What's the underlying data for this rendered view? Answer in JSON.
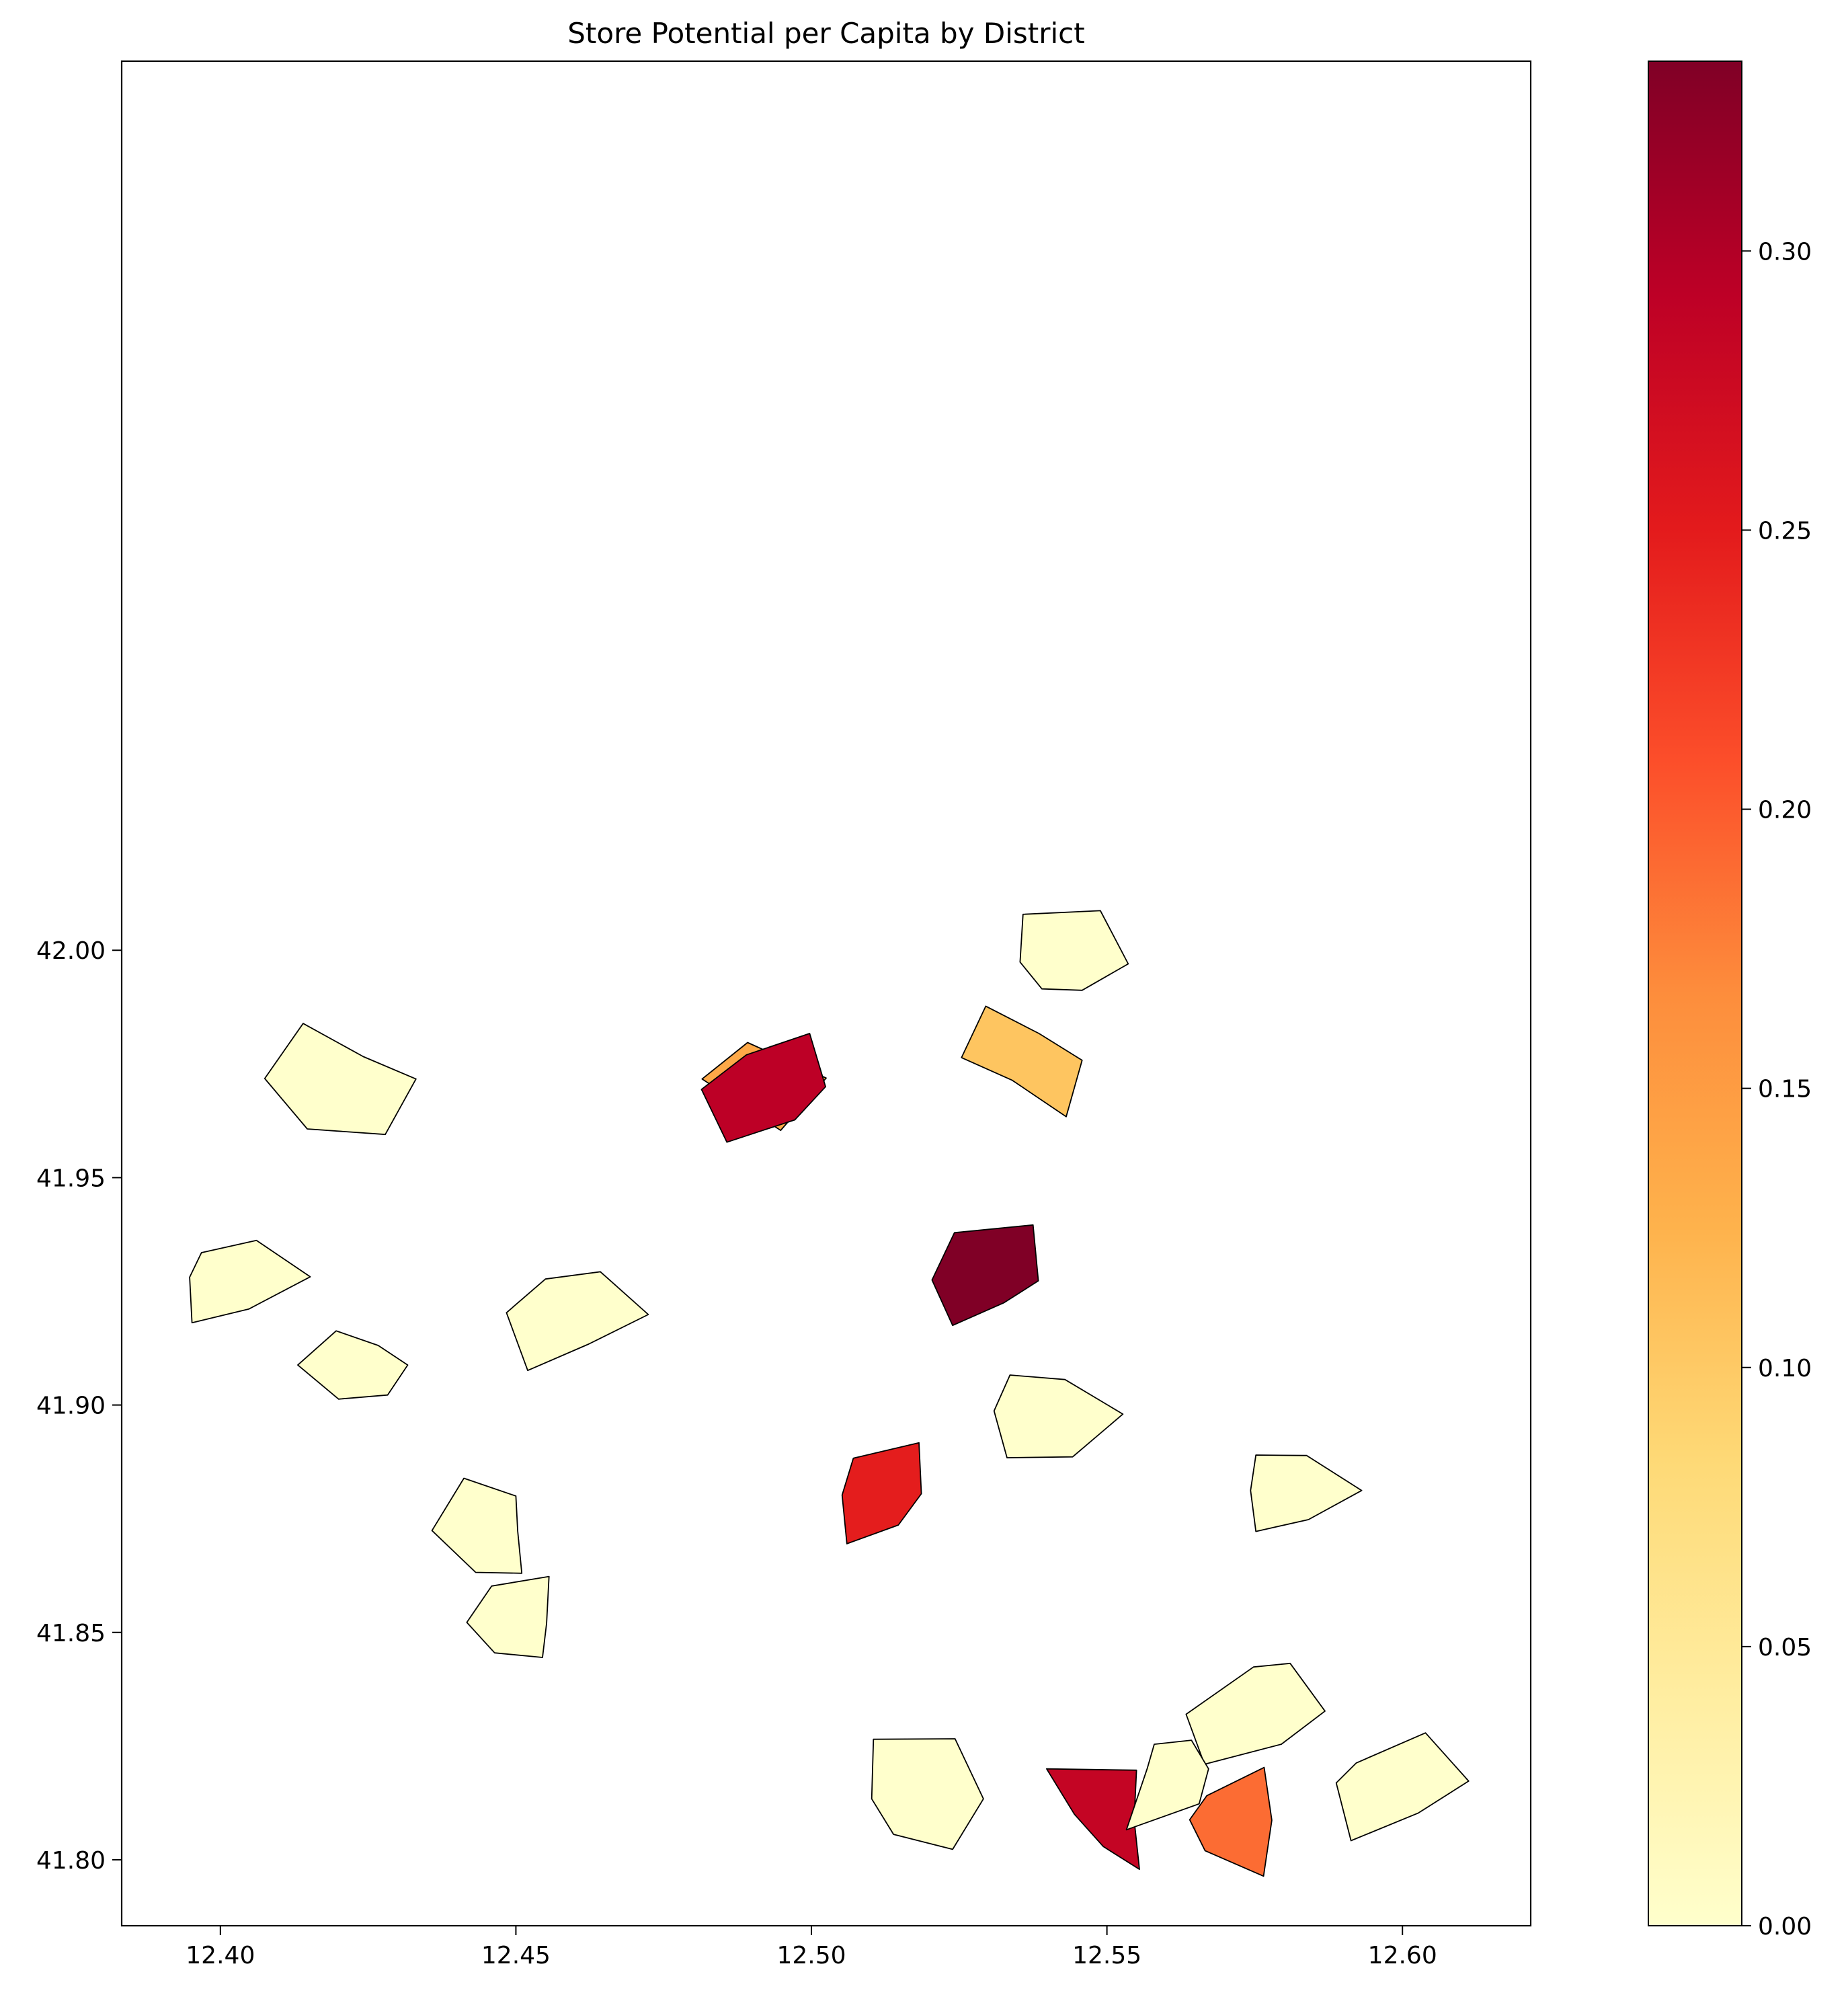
{
  "chart_data": {
    "type": "choropleth",
    "title": "Store Potential per Capita by District",
    "xlabel": "",
    "ylabel": "",
    "xlim": [
      12.3833,
      12.6217
    ],
    "ylim": [
      41.7855,
      42.1955
    ],
    "x_ticks": [
      12.4,
      12.45,
      12.5,
      12.55,
      12.6
    ],
    "x_tick_labels": [
      "12.40",
      "12.45",
      "12.50",
      "12.55",
      "12.60"
    ],
    "y_ticks": [
      41.8,
      41.85,
      41.9,
      41.95,
      42.0
    ],
    "y_tick_labels": [
      "41.80",
      "41.85",
      "41.90",
      "41.95",
      "42.00"
    ],
    "colorbar": {
      "colormap": "YlOrRd",
      "range": [
        0,
        0.334
      ],
      "ticks": [
        0.0,
        0.05,
        0.1,
        0.15,
        0.2,
        0.25,
        0.3
      ],
      "tick_labels": [
        "0.00",
        "0.05",
        "0.10",
        "0.15",
        "0.20",
        "0.25",
        "0.30"
      ],
      "placement": "right"
    },
    "grid": false,
    "districts": [
      {
        "value": 0.0,
        "polygon": [
          [
            12.5358,
            42.0079
          ],
          [
            12.5489,
            42.0087
          ],
          [
            12.5536,
            41.997
          ],
          [
            12.5458,
            41.9912
          ],
          [
            12.539,
            41.9915
          ],
          [
            12.5353,
            41.9974
          ]
        ]
      },
      {
        "value": 0.0,
        "polygon": [
          [
            12.414,
            41.9839
          ],
          [
            12.4242,
            41.9766
          ],
          [
            12.4331,
            41.9717
          ],
          [
            12.4279,
            41.9595
          ],
          [
            12.4147,
            41.9607
          ],
          [
            12.4075,
            41.9718
          ]
        ]
      },
      {
        "value": 0.135,
        "polygon": [
          [
            12.4892,
            41.9797
          ],
          [
            12.5025,
            41.9719
          ],
          [
            12.4948,
            41.9604
          ],
          [
            12.4815,
            41.9717
          ]
        ]
      },
      {
        "value": 0.292,
        "polygon": [
          [
            12.489,
            41.977
          ],
          [
            12.4997,
            41.9817
          ],
          [
            12.5024,
            41.97
          ],
          [
            12.4972,
            41.9627
          ],
          [
            12.4857,
            41.9578
          ],
          [
            12.4814,
            41.9694
          ]
        ]
      },
      {
        "value": 0.105,
        "polygon": [
          [
            12.5295,
            41.9877
          ],
          [
            12.5385,
            41.9817
          ],
          [
            12.5458,
            41.9758
          ],
          [
            12.5431,
            41.9634
          ],
          [
            12.534,
            41.9714
          ],
          [
            12.5254,
            41.9764
          ]
        ]
      },
      {
        "value": 0.334,
        "polygon": [
          [
            12.5242,
            41.9379
          ],
          [
            12.5375,
            41.9396
          ],
          [
            12.5384,
            41.9273
          ],
          [
            12.5326,
            41.9225
          ],
          [
            12.5239,
            41.9175
          ],
          [
            12.5204,
            41.9275
          ]
        ]
      },
      {
        "value": 0.0,
        "polygon": [
          [
            12.3968,
            41.9335
          ],
          [
            12.4061,
            41.9362
          ],
          [
            12.4152,
            41.9282
          ],
          [
            12.4048,
            41.9211
          ],
          [
            12.3952,
            41.9181
          ],
          [
            12.3948,
            41.9281
          ]
        ]
      },
      {
        "value": 0.0,
        "polygon": [
          [
            12.4196,
            41.9163
          ],
          [
            12.4267,
            41.9131
          ],
          [
            12.4317,
            41.9088
          ],
          [
            12.4283,
            41.9022
          ],
          [
            12.42,
            41.9013
          ],
          [
            12.4131,
            41.9088
          ]
        ]
      },
      {
        "value": 0.0,
        "polygon": [
          [
            12.455,
            41.9277
          ],
          [
            12.4643,
            41.9293
          ],
          [
            12.4724,
            41.9199
          ],
          [
            12.4623,
            41.9134
          ],
          [
            12.452,
            41.9076
          ],
          [
            12.4484,
            41.9203
          ]
        ]
      },
      {
        "value": 0.0,
        "polygon": [
          [
            12.5336,
            41.9066
          ],
          [
            12.5429,
            41.9056
          ],
          [
            12.5527,
            41.898
          ],
          [
            12.5442,
            41.8886
          ],
          [
            12.5331,
            41.8884
          ],
          [
            12.5309,
            41.8987
          ]
        ]
      },
      {
        "value": 0.0,
        "polygon": [
          [
            12.5752,
            41.889
          ],
          [
            12.5838,
            41.8889
          ],
          [
            12.5931,
            41.8812
          ],
          [
            12.5841,
            41.8748
          ],
          [
            12.5752,
            41.8722
          ],
          [
            12.5743,
            41.8812
          ]
        ]
      },
      {
        "value": 0.248,
        "polygon": [
          [
            12.5071,
            41.8883
          ],
          [
            12.5182,
            41.8917
          ],
          [
            12.5186,
            41.8805
          ],
          [
            12.5147,
            41.8736
          ],
          [
            12.506,
            41.8695
          ],
          [
            12.5052,
            41.8802
          ]
        ]
      },
      {
        "value": 0.0,
        "polygon": [
          [
            12.4412,
            41.8839
          ],
          [
            12.45,
            41.88
          ],
          [
            12.4503,
            41.8723
          ],
          [
            12.451,
            41.863
          ],
          [
            12.4432,
            41.8632
          ],
          [
            12.4358,
            41.8724
          ]
        ]
      },
      {
        "value": 0.0,
        "polygon": [
          [
            12.4459,
            41.8602
          ],
          [
            12.4556,
            41.8623
          ],
          [
            12.4552,
            41.852
          ],
          [
            12.4545,
            41.8445
          ],
          [
            12.4464,
            41.8455
          ],
          [
            12.4417,
            41.8522
          ]
        ]
      },
      {
        "value": 0.0,
        "polygon": [
          [
            12.5748,
            41.8424
          ],
          [
            12.581,
            41.8432
          ],
          [
            12.5869,
            41.8327
          ],
          [
            12.5795,
            41.8254
          ],
          [
            12.5665,
            41.821
          ],
          [
            12.5634,
            41.832
          ]
        ]
      },
      {
        "value": 0.0,
        "polygon": [
          [
            12.5105,
            41.8265
          ],
          [
            12.5243,
            41.8266
          ],
          [
            12.5291,
            41.8134
          ],
          [
            12.5239,
            41.8023
          ],
          [
            12.5139,
            41.8056
          ],
          [
            12.5102,
            41.8134
          ]
        ]
      },
      {
        "value": 0.285,
        "polygon": [
          [
            12.5398,
            41.82
          ],
          [
            12.555,
            41.8197
          ],
          [
            12.5546,
            41.8088
          ],
          [
            12.5555,
            41.7979
          ],
          [
            12.5494,
            41.8029
          ],
          [
            12.5445,
            41.81
          ]
        ]
      },
      {
        "value": 0.0,
        "polygon": [
          [
            12.558,
            41.8254
          ],
          [
            12.5643,
            41.8263
          ],
          [
            12.5672,
            41.82
          ],
          [
            12.5656,
            41.8123
          ],
          [
            12.5533,
            41.8066
          ],
          [
            12.5568,
            41.82
          ]
        ]
      },
      {
        "value": 0.189,
        "polygon": [
          [
            12.5669,
            41.8141
          ],
          [
            12.5766,
            41.8203
          ],
          [
            12.5779,
            41.8087
          ],
          [
            12.5765,
            41.7964
          ],
          [
            12.5666,
            41.802
          ],
          [
            12.564,
            41.8088
          ]
        ]
      },
      {
        "value": 0.0,
        "polygon": [
          [
            12.5922,
            41.8213
          ],
          [
            12.6039,
            41.8279
          ],
          [
            12.6112,
            41.8173
          ],
          [
            12.6027,
            41.8103
          ],
          [
            12.5913,
            41.8042
          ],
          [
            12.5888,
            41.8169
          ]
        ]
      }
    ]
  }
}
